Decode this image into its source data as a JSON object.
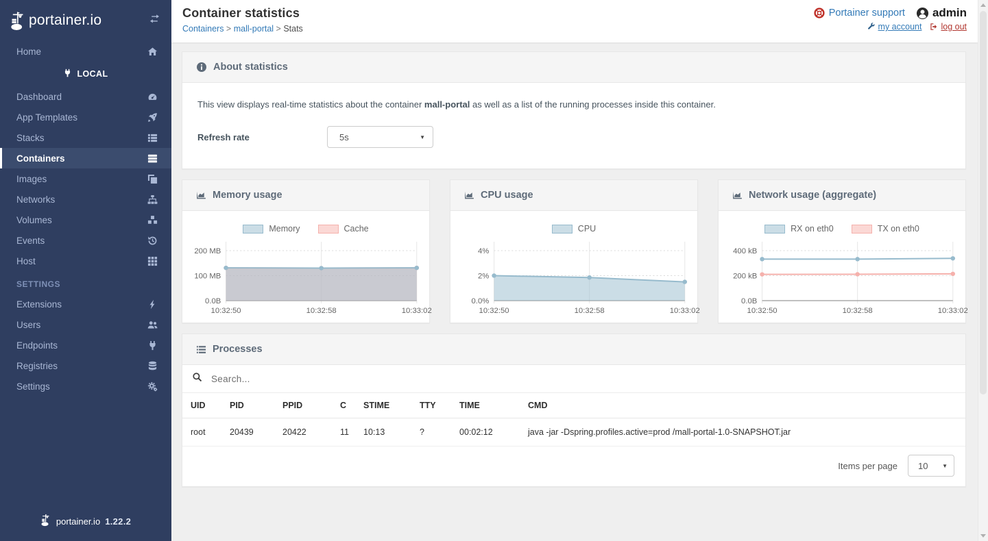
{
  "sidebar": {
    "logo": "portainer.io",
    "home_label": "Home",
    "endpoint": "LOCAL",
    "items": [
      {
        "label": "Dashboard"
      },
      {
        "label": "App Templates"
      },
      {
        "label": "Stacks"
      },
      {
        "label": "Containers"
      },
      {
        "label": "Images"
      },
      {
        "label": "Networks"
      },
      {
        "label": "Volumes"
      },
      {
        "label": "Events"
      },
      {
        "label": "Host"
      }
    ],
    "settings_header": "SETTINGS",
    "settings_items": [
      {
        "label": "Extensions"
      },
      {
        "label": "Users"
      },
      {
        "label": "Endpoints"
      },
      {
        "label": "Registries"
      },
      {
        "label": "Settings"
      }
    ],
    "footer_logo": "portainer.io",
    "footer_version": "1.22.2"
  },
  "header": {
    "title": "Container statistics",
    "breadcrumb": {
      "root": "Containers",
      "sep1": " > ",
      "container": "mall-portal",
      "sep2": " > ",
      "current": "Stats"
    },
    "support": "Portainer support",
    "username": "admin",
    "my_account": "my account",
    "log_out": "log out"
  },
  "about": {
    "title": "About statistics",
    "desc_prefix": "This view displays real-time statistics about the container ",
    "container": "mall-portal",
    "desc_suffix": " as well as a list of the running processes inside this container.",
    "refresh_label": "Refresh rate",
    "refresh_value": "5s"
  },
  "chart_data": [
    {
      "type": "line",
      "title": "Memory usage",
      "x": [
        "10:32:50",
        "10:32:58",
        "10:33:02"
      ],
      "yticks": [
        {
          "v": 0,
          "label": "0.0B"
        },
        {
          "v": 100,
          "label": "100 MB"
        },
        {
          "v": 200,
          "label": "200 MB"
        }
      ],
      "ymax": 230,
      "ylabel_unit": "MB",
      "grid": true,
      "legend_position": "top",
      "series": [
        {
          "name": "Memory",
          "values": [
            131,
            130,
            131
          ],
          "stroke": "#97bbcd",
          "fill": "rgba(151,187,205,0.5)",
          "area": true
        },
        {
          "name": "Cache",
          "values": [
            131,
            130,
            131
          ],
          "stroke": "#f5b1ac",
          "fill": "rgba(247,177,172,0.5)",
          "area": true
        }
      ]
    },
    {
      "type": "line",
      "title": "CPU usage",
      "x": [
        "10:32:50",
        "10:32:58",
        "10:33:02"
      ],
      "yticks": [
        {
          "v": 0,
          "label": "0.0%"
        },
        {
          "v": 2,
          "label": "2%"
        },
        {
          "v": 4,
          "label": "4%"
        }
      ],
      "ymax": 4.6,
      "ylabel_unit": "%",
      "grid": true,
      "legend_position": "top",
      "series": [
        {
          "name": "CPU",
          "values": [
            2.0,
            1.85,
            1.5
          ],
          "stroke": "#97bbcd",
          "fill": "rgba(151,187,205,0.5)",
          "area": true
        }
      ]
    },
    {
      "type": "line",
      "title": "Network usage (aggregate)",
      "x": [
        "10:32:50",
        "10:32:58",
        "10:33:02"
      ],
      "yticks": [
        {
          "v": 0,
          "label": "0.0B"
        },
        {
          "v": 200,
          "label": "200 kB"
        },
        {
          "v": 400,
          "label": "400 kB"
        }
      ],
      "ymax": 460,
      "ylabel_unit": "kB",
      "grid": true,
      "legend_position": "top",
      "series": [
        {
          "name": "RX on eth0",
          "values": [
            332,
            332,
            338
          ],
          "stroke": "#97bbcd",
          "fill": "rgba(151,187,205,0.5)",
          "area": false
        },
        {
          "name": "TX on eth0",
          "values": [
            210,
            211,
            214
          ],
          "stroke": "#f5b1ac",
          "fill": "rgba(247,177,172,0.5)",
          "area": false
        }
      ]
    }
  ],
  "processes": {
    "title": "Processes",
    "search_placeholder": "Search...",
    "columns": [
      "UID",
      "PID",
      "PPID",
      "C",
      "STIME",
      "TTY",
      "TIME",
      "CMD"
    ],
    "rows": [
      [
        "root",
        "20439",
        "20422",
        "11",
        "10:13",
        "?",
        "00:02:12",
        "java -jar -Dspring.profiles.active=prod /mall-portal-1.0-SNAPSHOT.jar"
      ]
    ],
    "items_per_page_label": "Items per page",
    "items_per_page_value": "10"
  },
  "colors": {
    "sidebar_bg": "#2f3e60",
    "sidebar_active_bg": "#3b4c6e",
    "accent_blue": "#337ab7",
    "danger_red": "#b1362f",
    "series_blue": "#97bbcd",
    "series_pink": "#f5b1ac",
    "panel_header_bg": "#f5f5f5",
    "page_bg": "#efefef"
  }
}
